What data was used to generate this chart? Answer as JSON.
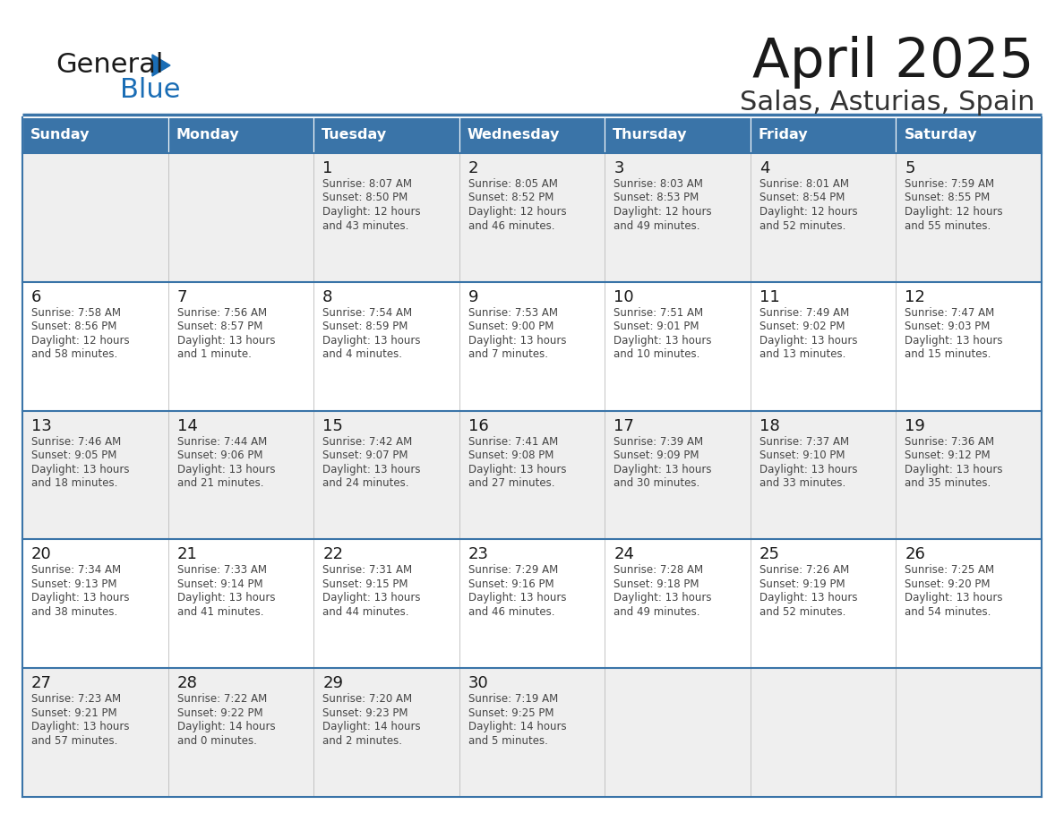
{
  "title": "April 2025",
  "subtitle": "Salas, Asturias, Spain",
  "header_bg": "#3A74A8",
  "header_text": "#FFFFFF",
  "cell_bg_white": "#FFFFFF",
  "cell_bg_gray": "#EFEFEF",
  "row_border_color": "#3A74A8",
  "cell_inner_border": "#CCCCCC",
  "day_names": [
    "Sunday",
    "Monday",
    "Tuesday",
    "Wednesday",
    "Thursday",
    "Friday",
    "Saturday"
  ],
  "title_color": "#1A1A1A",
  "subtitle_color": "#333333",
  "day_number_color": "#1A1A1A",
  "cell_text_color": "#444444",
  "logo_general_color": "#1A1A1A",
  "logo_blue_color": "#1A6DB5",
  "separator_color": "#3A74A8",
  "weeks": [
    [
      {
        "day": "",
        "sunrise": "",
        "sunset": "",
        "daylight": ""
      },
      {
        "day": "",
        "sunrise": "",
        "sunset": "",
        "daylight": ""
      },
      {
        "day": "1",
        "sunrise": "Sunrise: 8:07 AM",
        "sunset": "Sunset: 8:50 PM",
        "daylight": "Daylight: 12 hours\nand 43 minutes."
      },
      {
        "day": "2",
        "sunrise": "Sunrise: 8:05 AM",
        "sunset": "Sunset: 8:52 PM",
        "daylight": "Daylight: 12 hours\nand 46 minutes."
      },
      {
        "day": "3",
        "sunrise": "Sunrise: 8:03 AM",
        "sunset": "Sunset: 8:53 PM",
        "daylight": "Daylight: 12 hours\nand 49 minutes."
      },
      {
        "day": "4",
        "sunrise": "Sunrise: 8:01 AM",
        "sunset": "Sunset: 8:54 PM",
        "daylight": "Daylight: 12 hours\nand 52 minutes."
      },
      {
        "day": "5",
        "sunrise": "Sunrise: 7:59 AM",
        "sunset": "Sunset: 8:55 PM",
        "daylight": "Daylight: 12 hours\nand 55 minutes."
      }
    ],
    [
      {
        "day": "6",
        "sunrise": "Sunrise: 7:58 AM",
        "sunset": "Sunset: 8:56 PM",
        "daylight": "Daylight: 12 hours\nand 58 minutes."
      },
      {
        "day": "7",
        "sunrise": "Sunrise: 7:56 AM",
        "sunset": "Sunset: 8:57 PM",
        "daylight": "Daylight: 13 hours\nand 1 minute."
      },
      {
        "day": "8",
        "sunrise": "Sunrise: 7:54 AM",
        "sunset": "Sunset: 8:59 PM",
        "daylight": "Daylight: 13 hours\nand 4 minutes."
      },
      {
        "day": "9",
        "sunrise": "Sunrise: 7:53 AM",
        "sunset": "Sunset: 9:00 PM",
        "daylight": "Daylight: 13 hours\nand 7 minutes."
      },
      {
        "day": "10",
        "sunrise": "Sunrise: 7:51 AM",
        "sunset": "Sunset: 9:01 PM",
        "daylight": "Daylight: 13 hours\nand 10 minutes."
      },
      {
        "day": "11",
        "sunrise": "Sunrise: 7:49 AM",
        "sunset": "Sunset: 9:02 PM",
        "daylight": "Daylight: 13 hours\nand 13 minutes."
      },
      {
        "day": "12",
        "sunrise": "Sunrise: 7:47 AM",
        "sunset": "Sunset: 9:03 PM",
        "daylight": "Daylight: 13 hours\nand 15 minutes."
      }
    ],
    [
      {
        "day": "13",
        "sunrise": "Sunrise: 7:46 AM",
        "sunset": "Sunset: 9:05 PM",
        "daylight": "Daylight: 13 hours\nand 18 minutes."
      },
      {
        "day": "14",
        "sunrise": "Sunrise: 7:44 AM",
        "sunset": "Sunset: 9:06 PM",
        "daylight": "Daylight: 13 hours\nand 21 minutes."
      },
      {
        "day": "15",
        "sunrise": "Sunrise: 7:42 AM",
        "sunset": "Sunset: 9:07 PM",
        "daylight": "Daylight: 13 hours\nand 24 minutes."
      },
      {
        "day": "16",
        "sunrise": "Sunrise: 7:41 AM",
        "sunset": "Sunset: 9:08 PM",
        "daylight": "Daylight: 13 hours\nand 27 minutes."
      },
      {
        "day": "17",
        "sunrise": "Sunrise: 7:39 AM",
        "sunset": "Sunset: 9:09 PM",
        "daylight": "Daylight: 13 hours\nand 30 minutes."
      },
      {
        "day": "18",
        "sunrise": "Sunrise: 7:37 AM",
        "sunset": "Sunset: 9:10 PM",
        "daylight": "Daylight: 13 hours\nand 33 minutes."
      },
      {
        "day": "19",
        "sunrise": "Sunrise: 7:36 AM",
        "sunset": "Sunset: 9:12 PM",
        "daylight": "Daylight: 13 hours\nand 35 minutes."
      }
    ],
    [
      {
        "day": "20",
        "sunrise": "Sunrise: 7:34 AM",
        "sunset": "Sunset: 9:13 PM",
        "daylight": "Daylight: 13 hours\nand 38 minutes."
      },
      {
        "day": "21",
        "sunrise": "Sunrise: 7:33 AM",
        "sunset": "Sunset: 9:14 PM",
        "daylight": "Daylight: 13 hours\nand 41 minutes."
      },
      {
        "day": "22",
        "sunrise": "Sunrise: 7:31 AM",
        "sunset": "Sunset: 9:15 PM",
        "daylight": "Daylight: 13 hours\nand 44 minutes."
      },
      {
        "day": "23",
        "sunrise": "Sunrise: 7:29 AM",
        "sunset": "Sunset: 9:16 PM",
        "daylight": "Daylight: 13 hours\nand 46 minutes."
      },
      {
        "day": "24",
        "sunrise": "Sunrise: 7:28 AM",
        "sunset": "Sunset: 9:18 PM",
        "daylight": "Daylight: 13 hours\nand 49 minutes."
      },
      {
        "day": "25",
        "sunrise": "Sunrise: 7:26 AM",
        "sunset": "Sunset: 9:19 PM",
        "daylight": "Daylight: 13 hours\nand 52 minutes."
      },
      {
        "day": "26",
        "sunrise": "Sunrise: 7:25 AM",
        "sunset": "Sunset: 9:20 PM",
        "daylight": "Daylight: 13 hours\nand 54 minutes."
      }
    ],
    [
      {
        "day": "27",
        "sunrise": "Sunrise: 7:23 AM",
        "sunset": "Sunset: 9:21 PM",
        "daylight": "Daylight: 13 hours\nand 57 minutes."
      },
      {
        "day": "28",
        "sunrise": "Sunrise: 7:22 AM",
        "sunset": "Sunset: 9:22 PM",
        "daylight": "Daylight: 14 hours\nand 0 minutes."
      },
      {
        "day": "29",
        "sunrise": "Sunrise: 7:20 AM",
        "sunset": "Sunset: 9:23 PM",
        "daylight": "Daylight: 14 hours\nand 2 minutes."
      },
      {
        "day": "30",
        "sunrise": "Sunrise: 7:19 AM",
        "sunset": "Sunset: 9:25 PM",
        "daylight": "Daylight: 14 hours\nand 5 minutes."
      },
      {
        "day": "",
        "sunrise": "",
        "sunset": "",
        "daylight": ""
      },
      {
        "day": "",
        "sunrise": "",
        "sunset": "",
        "daylight": ""
      },
      {
        "day": "",
        "sunrise": "",
        "sunset": "",
        "daylight": ""
      }
    ]
  ]
}
